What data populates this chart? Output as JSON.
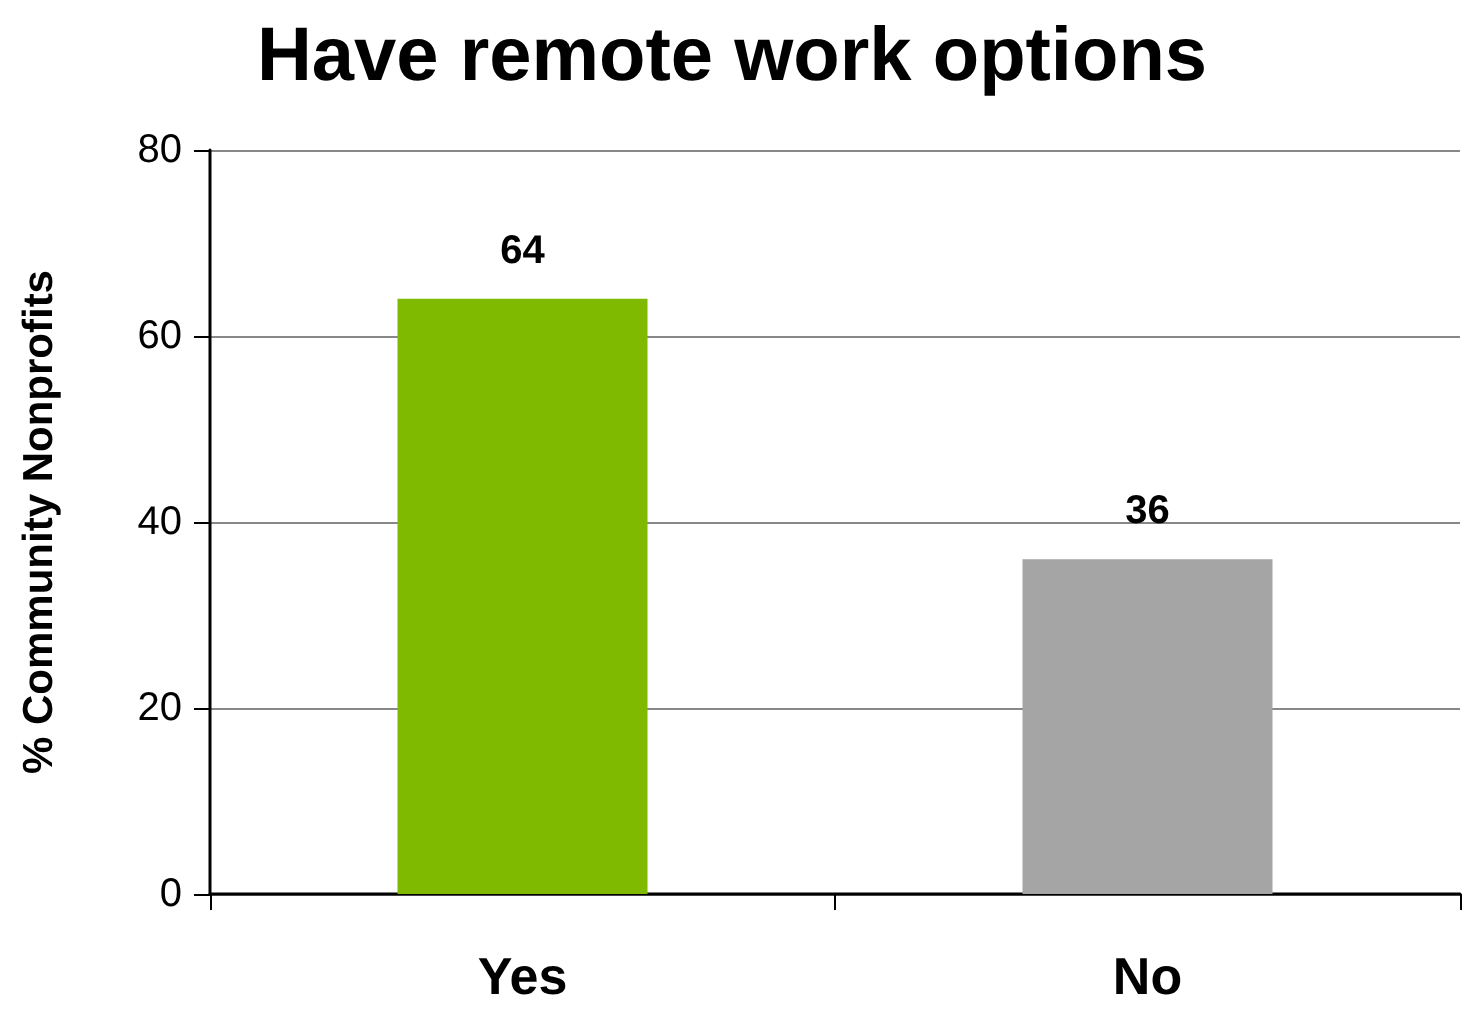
{
  "chart_data": {
    "type": "bar",
    "title": "Have remote work options",
    "ylabel": "% Community Nonprofits",
    "categories": [
      "Yes",
      "No"
    ],
    "values": [
      64,
      36
    ],
    "colors": [
      "#7fba00",
      "#a5a5a5"
    ],
    "ylim": [
      0,
      80
    ],
    "yticks": [
      0,
      20,
      40,
      60,
      80
    ],
    "grid": "y",
    "data_labels": true
  }
}
